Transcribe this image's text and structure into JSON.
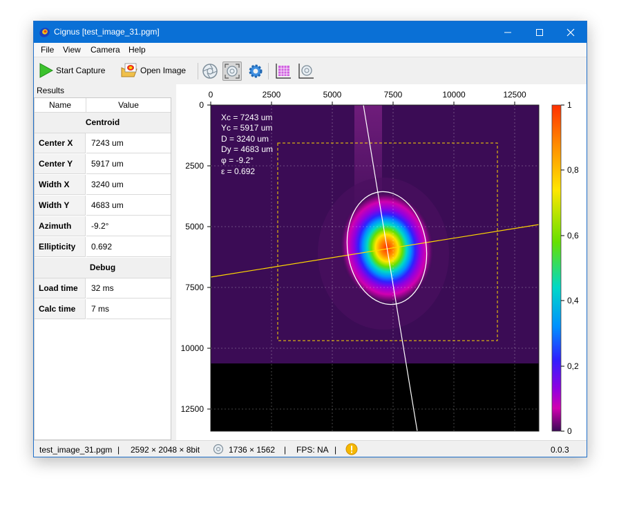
{
  "window": {
    "title": "Cignus [test_image_31.pgm]"
  },
  "menu": [
    "File",
    "View",
    "Camera",
    "Help"
  ],
  "toolbar": {
    "start_capture": "Start Capture",
    "open_image": "Open Image"
  },
  "results": {
    "label": "Results",
    "headers": [
      "Name",
      "Value"
    ],
    "sections": [
      {
        "title": "Centroid",
        "rows": [
          {
            "name": "Center X",
            "value": "7243 um"
          },
          {
            "name": "Center Y",
            "value": "5917 um"
          },
          {
            "name": "Width X",
            "value": "3240 um"
          },
          {
            "name": "Width Y",
            "value": "4683 um"
          },
          {
            "name": "Azimuth",
            "value": "-9.2°"
          },
          {
            "name": "Ellipticity",
            "value": "0.692"
          }
        ]
      },
      {
        "title": "Debug",
        "rows": [
          {
            "name": "Load time",
            "value": "32 ms"
          },
          {
            "name": "Calc time",
            "value": "7 ms"
          }
        ]
      }
    ]
  },
  "plot": {
    "overlay": [
      "Xc = 7243 um",
      "Yc = 5917 um",
      "D = 3240 um",
      "Dy = 4683 um",
      "φ = -9.2°",
      "ε = 0.692"
    ],
    "x_ticks": [
      "0",
      "2500",
      "5000",
      "7500",
      "10000",
      "12500"
    ],
    "y_ticks": [
      "0",
      "2500",
      "5000",
      "7500",
      "10000",
      "12500"
    ],
    "colorbar_ticks": [
      "1",
      "0,8",
      "0,6",
      "0,4",
      "0,2",
      "0"
    ]
  },
  "status": {
    "file": "test_image_31.pgm",
    "dims": "2592 × 2048 × 8bit",
    "roi": "1736 × 1562",
    "fps": "FPS: NA",
    "version": "0.0.3",
    "separator": "|"
  },
  "colors": {
    "titlebar": "#0a70d6",
    "accent_yellow": "#ffd800"
  }
}
